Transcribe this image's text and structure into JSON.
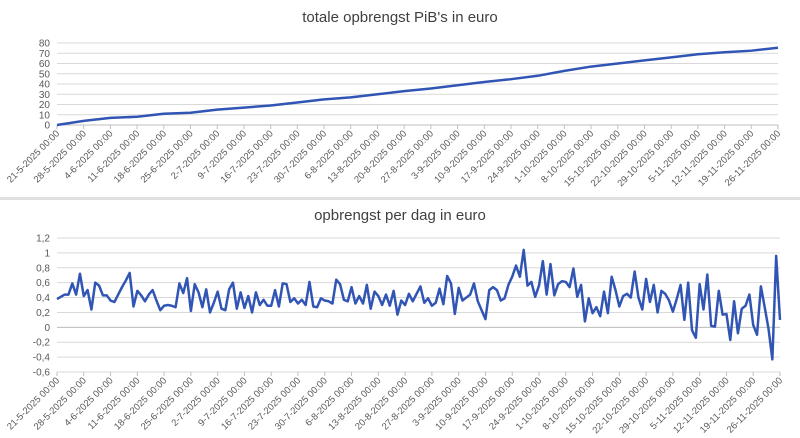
{
  "chart_data": [
    {
      "type": "line",
      "title": "totale opbrengst PiB's in euro",
      "xlabel": "",
      "ylabel": "",
      "ylim": [
        0,
        80
      ],
      "yticks": [
        "0",
        "10",
        "20",
        "30",
        "40",
        "50",
        "60",
        "70",
        "80"
      ],
      "grid": true,
      "color": "#3155b4",
      "categories": [
        "21-5-2025 00:00",
        "28-5-2025 00:00",
        "4-6-2025 00:00",
        "11-6-2025 00:00",
        "18-6-2025 00:00",
        "25-6-2025 00:00",
        "2-7-2025 00:00",
        "9-7-2025 00:00",
        "16-7-2025 00:00",
        "23-7-2025 00:00",
        "30-7-2025 00:00",
        "6-8-2025 00:00",
        "13-8-2025 00:00",
        "20-8-2025 00:00",
        "27-8-2025 00:00",
        "3-9-2025 00:00",
        "10-9-2025 00:00",
        "17-9-2025 00:00",
        "24-9-2025 00:00",
        "1-10-2025 00:00",
        "8-10-2025 00:00",
        "15-10-2025 00:00",
        "22-10-2025 00:00",
        "29-10-2025 00:00",
        "5-11-2025 00:00",
        "12-11-2025 00:00",
        "19-11-2025 00:00",
        "26-11-2025 00:00"
      ],
      "values": [
        0,
        4,
        7,
        8,
        11,
        12,
        15,
        17,
        19,
        22,
        25,
        27,
        30,
        33,
        35.6,
        38.8,
        42,
        44.7,
        48,
        52.8,
        57,
        60,
        63,
        66,
        69,
        71,
        72.5,
        75.4
      ]
    },
    {
      "type": "line",
      "title": "opbrengst per dag in euro",
      "xlabel": "",
      "ylabel": "",
      "ylim": [
        -0.6,
        1.2
      ],
      "yticks": [
        "-0,6",
        "-0,4",
        "-0,2",
        "0",
        "0,2",
        "0,4",
        "0,6",
        "0,8",
        "1",
        "1,2"
      ],
      "grid": true,
      "color": "#3155b4",
      "x_tick_labels": [
        "21-5-2025 00:00",
        "28-5-2025 00:00",
        "4-6-2025 00:00",
        "11-6-2025 00:00",
        "18-6-2025 00:00",
        "25-6-2025 00:00",
        "2-7-2025 00:00",
        "9-7-2025 00:00",
        "16-7-2025 00:00",
        "23-7-2025 00:00",
        "30-7-2025 00:00",
        "6-8-2025 00:00",
        "13-8-2025 00:00",
        "20-8-2025 00:00",
        "27-8-2025 00:00",
        "3-9-2025 00:00",
        "10-9-2025 00:00",
        "17-9-2025 00:00",
        "24-9-2025 00:00",
        "1-10-2025 00:00",
        "8-10-2025 00:00",
        "15-10-2025 00:00",
        "22-10-2025 00:00",
        "29-10-2025 00:00",
        "5-11-2025 00:00",
        "12-11-2025 00:00",
        "19-11-2025 00:00",
        "26-11-2025 00:00"
      ],
      "values": [
        0.38,
        0.41,
        0.44,
        0.44,
        0.59,
        0.44,
        0.72,
        0.42,
        0.5,
        0.24,
        0.6,
        0.56,
        0.43,
        0.43,
        0.36,
        0.34,
        0.44,
        0.54,
        0.63,
        0.73,
        0.28,
        0.49,
        0.43,
        0.35,
        0.44,
        0.5,
        0.36,
        0.23,
        0.29,
        0.3,
        0.29,
        0.27,
        0.59,
        0.46,
        0.66,
        0.22,
        0.58,
        0.47,
        0.27,
        0.51,
        0.2,
        0.33,
        0.48,
        0.25,
        0.23,
        0.51,
        0.6,
        0.25,
        0.47,
        0.26,
        0.42,
        0.2,
        0.47,
        0.3,
        0.37,
        0.29,
        0.29,
        0.5,
        0.28,
        0.59,
        0.58,
        0.34,
        0.39,
        0.32,
        0.37,
        0.3,
        0.61,
        0.28,
        0.27,
        0.39,
        0.36,
        0.35,
        0.32,
        0.64,
        0.58,
        0.37,
        0.35,
        0.54,
        0.32,
        0.42,
        0.32,
        0.57,
        0.25,
        0.48,
        0.42,
        0.3,
        0.44,
        0.29,
        0.49,
        0.17,
        0.36,
        0.3,
        0.45,
        0.35,
        0.45,
        0.55,
        0.33,
        0.39,
        0.29,
        0.33,
        0.52,
        0.31,
        0.69,
        0.59,
        0.18,
        0.53,
        0.36,
        0.4,
        0.44,
        0.59,
        0.35,
        0.23,
        0.11,
        0.5,
        0.54,
        0.5,
        0.36,
        0.39,
        0.57,
        0.68,
        0.83,
        0.68,
        1.04,
        0.56,
        0.61,
        0.41,
        0.56,
        0.89,
        0.44,
        0.85,
        0.43,
        0.58,
        0.62,
        0.61,
        0.54,
        0.79,
        0.41,
        0.57,
        0.08,
        0.39,
        0.19,
        0.27,
        0.15,
        0.48,
        0.19,
        0.68,
        0.5,
        0.28,
        0.42,
        0.45,
        0.4,
        0.75,
        0.4,
        0.24,
        0.65,
        0.34,
        0.57,
        0.2,
        0.49,
        0.45,
        0.36,
        0.21,
        0.38,
        0.57,
        0.1,
        0.6,
        -0.04,
        -0.14,
        0.58,
        0.24,
        0.71,
        0.02,
        0.01,
        0.49,
        0.17,
        0.18,
        -0.17,
        0.35,
        -0.08,
        0.25,
        0.29,
        0.44,
        0.03,
        -0.1,
        0.55,
        0.27,
        -0.02,
        -0.43,
        0.96,
        0.1
      ]
    }
  ]
}
